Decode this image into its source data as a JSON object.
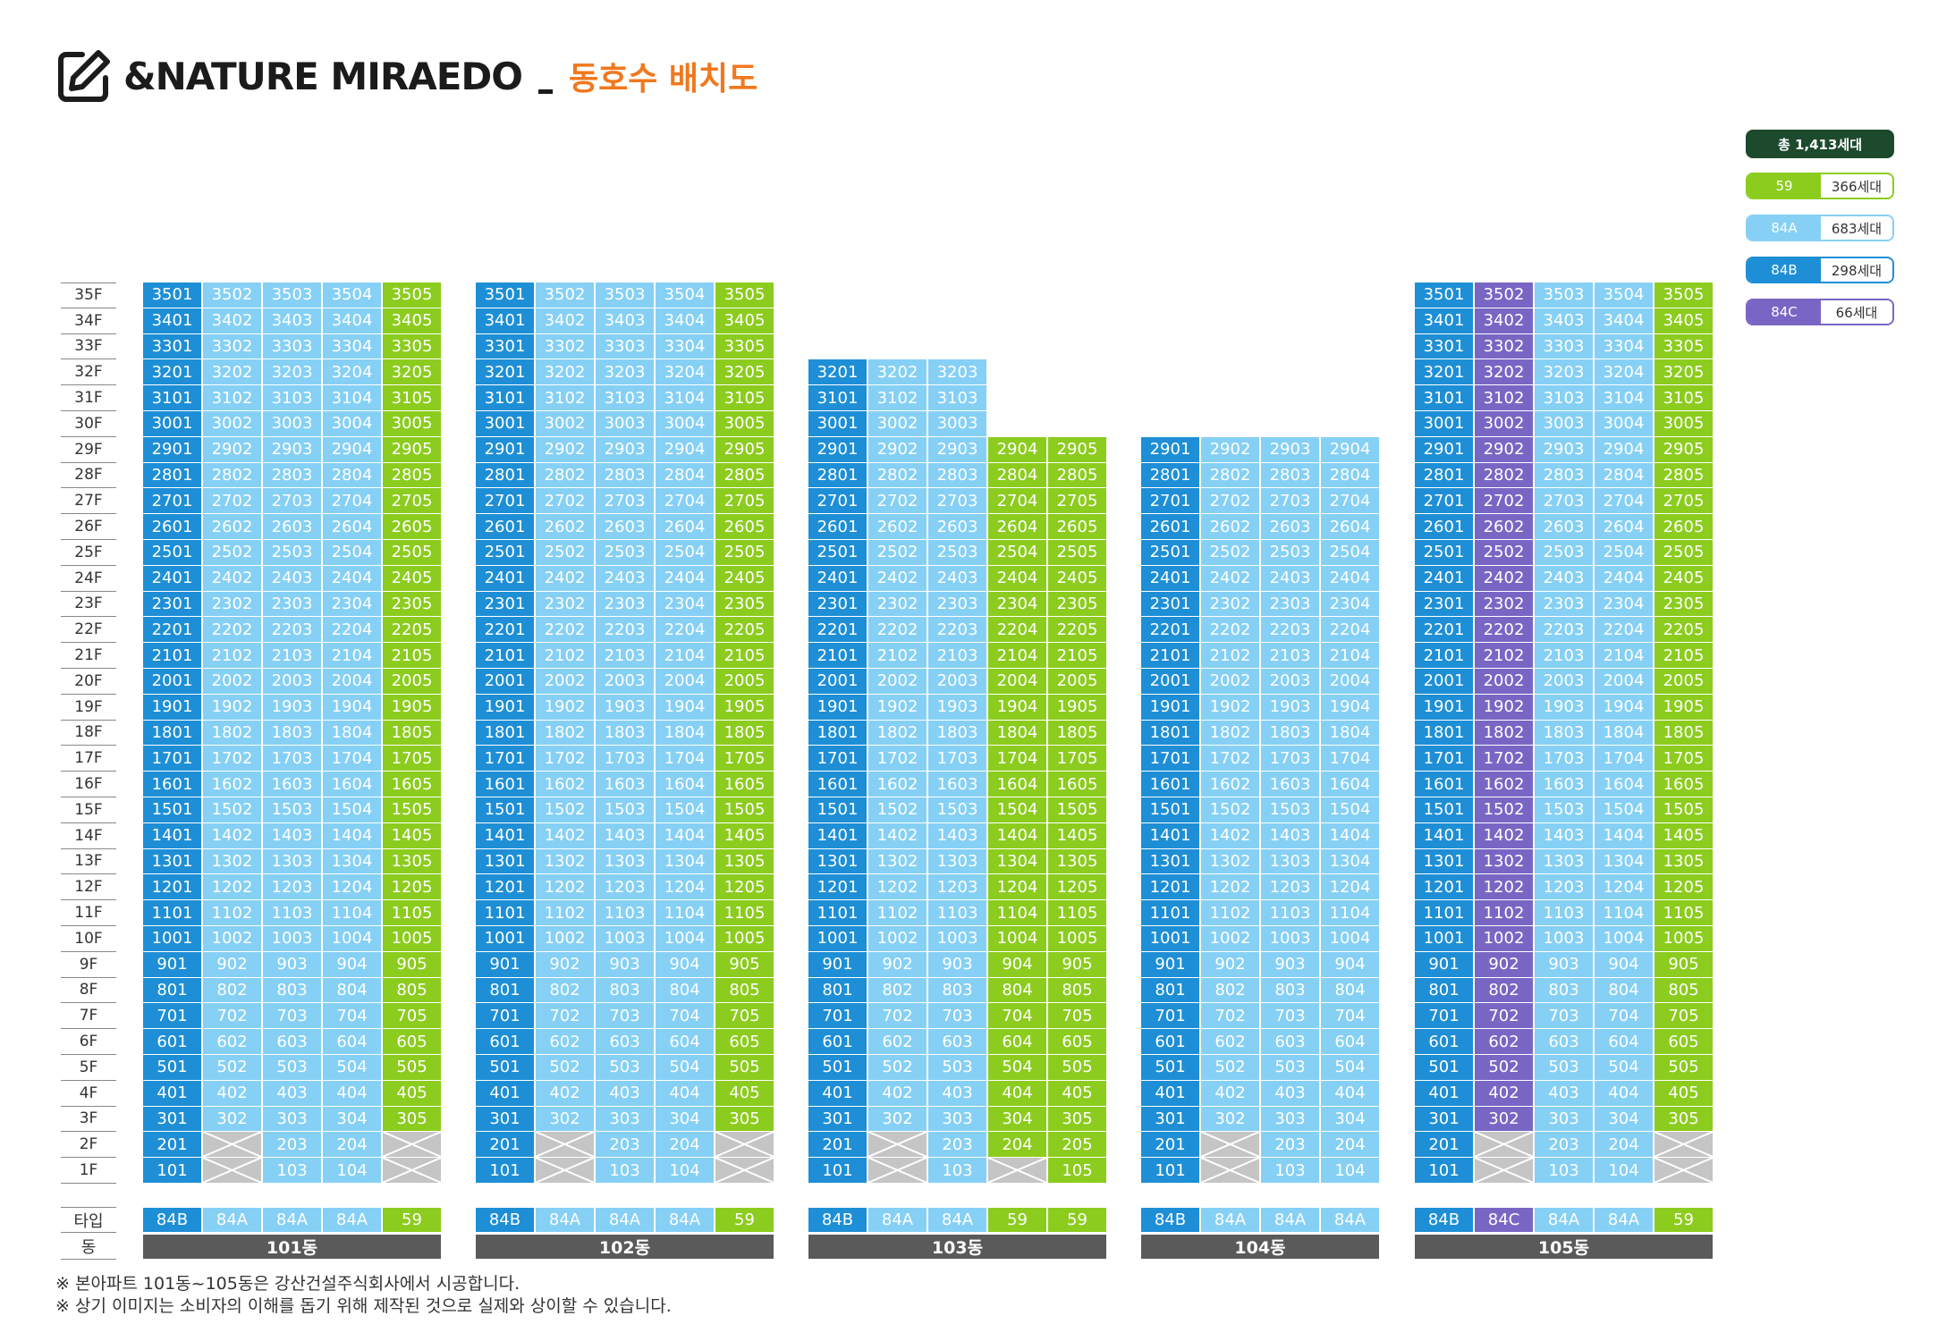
{
  "header": {
    "brand": "&NATURE MIRAEDO",
    "subtitle": "동호수 배치도"
  },
  "legend": {
    "total": "총 1,413세대",
    "items": [
      {
        "type": "59",
        "count": "366세대",
        "color": "#8ccc1e"
      },
      {
        "type": "84A",
        "count": "683세대",
        "color": "#86d0f5"
      },
      {
        "type": "84B",
        "count": "298세대",
        "color": "#1e8fd6"
      },
      {
        "type": "84C",
        "count": "66세대",
        "color": "#7966c4"
      }
    ]
  },
  "colors": {
    "59": "#8ccc1e",
    "84A": "#86d0f5",
    "84B": "#1e8fd6",
    "84C": "#7966c4"
  },
  "floors": [
    "35F",
    "34F",
    "33F",
    "32F",
    "31F",
    "30F",
    "29F",
    "28F",
    "27F",
    "26F",
    "25F",
    "24F",
    "23F",
    "22F",
    "21F",
    "20F",
    "19F",
    "18F",
    "17F",
    "16F",
    "15F",
    "14F",
    "13F",
    "12F",
    "11F",
    "10F",
    "9F",
    "8F",
    "7F",
    "6F",
    "5F",
    "4F",
    "3F",
    "2F",
    "1F"
  ],
  "row_labels": {
    "type": "타입",
    "dong": "동"
  },
  "buildings": [
    {
      "name": "101동",
      "types": [
        "84B",
        "84A",
        "84A",
        "84A",
        "59"
      ],
      "lines": [
        [
          35,
          1
        ],
        [
          35,
          3
        ],
        [
          35,
          1
        ],
        [
          35,
          1
        ],
        [
          35,
          3
        ]
      ]
    },
    {
      "name": "102동",
      "types": [
        "84B",
        "84A",
        "84A",
        "84A",
        "59"
      ],
      "lines": [
        [
          35,
          1
        ],
        [
          35,
          3
        ],
        [
          35,
          1
        ],
        [
          35,
          1
        ],
        [
          35,
          3
        ]
      ]
    },
    {
      "name": "103동",
      "types": [
        "84B",
        "84A",
        "84A",
        "59",
        "59"
      ],
      "lines": [
        [
          32,
          1
        ],
        [
          32,
          3
        ],
        [
          32,
          1
        ],
        [
          29,
          2
        ],
        [
          29,
          1
        ]
      ]
    },
    {
      "name": "104동",
      "types": [
        "84B",
        "84A",
        "84A",
        "84A"
      ],
      "lines": [
        [
          29,
          1
        ],
        [
          29,
          3
        ],
        [
          29,
          1
        ],
        [
          29,
          1
        ]
      ]
    },
    {
      "name": "105동",
      "types": [
        "84B",
        "84C",
        "84A",
        "84A",
        "59"
      ],
      "lines": [
        [
          35,
          1
        ],
        [
          35,
          3
        ],
        [
          35,
          1
        ],
        [
          35,
          1
        ],
        [
          35,
          3
        ]
      ]
    }
  ],
  "footnotes": [
    "※ 본아파트 101동~105동은 강산건설주식회사에서 시공합니다.",
    "※ 상기 이미지는 소비자의 이해를 돕기 위해 제작된 것으로 실제와 상이할 수 있습니다."
  ]
}
